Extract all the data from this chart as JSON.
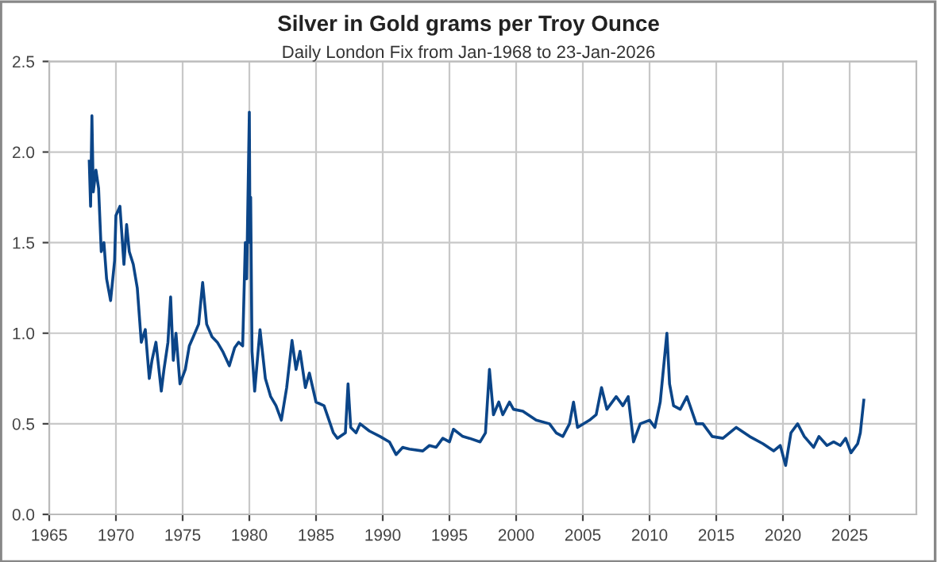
{
  "chart_data": {
    "type": "line",
    "title": "Silver in Gold grams per Troy Ounce",
    "subtitle": "Daily London Fix from Jan-1968 to 23-Jan-2026",
    "series": [
      {
        "color": "#0b4588",
        "x": [
          1968.0,
          1968.1,
          1968.2,
          1968.3,
          1968.5,
          1968.7,
          1968.9,
          1969.1,
          1969.3,
          1969.6,
          1969.9,
          1970.0,
          1970.3,
          1970.6,
          1970.8,
          1971.0,
          1971.3,
          1971.6,
          1971.8,
          1971.9,
          1972.2,
          1972.5,
          1972.7,
          1973.0,
          1973.4,
          1973.6,
          1973.9,
          1974.1,
          1974.3,
          1974.5,
          1974.8,
          1975.2,
          1975.5,
          1975.8,
          1976.2,
          1976.5,
          1976.8,
          1977.2,
          1977.6,
          1978.0,
          1978.5,
          1978.9,
          1979.2,
          1979.5,
          1979.7,
          1979.8,
          1980.0,
          1980.05,
          1980.1,
          1980.2,
          1980.4,
          1980.8,
          1981.2,
          1981.6,
          1982.0,
          1982.4,
          1982.8,
          1983.2,
          1983.5,
          1983.8,
          1984.2,
          1984.5,
          1985.0,
          1985.6,
          1986.3,
          1986.6,
          1987.2,
          1987.4,
          1987.6,
          1988.0,
          1988.3,
          1989.0,
          1989.8,
          1990.5,
          1991.0,
          1991.5,
          1992.0,
          1993.0,
          1993.5,
          1994.0,
          1994.5,
          1995.0,
          1995.3,
          1996.0,
          1996.5,
          1997.3,
          1997.7,
          1998.0,
          1998.3,
          1998.7,
          1999.0,
          1999.5,
          1999.8,
          2000.5,
          2001.5,
          2002.5,
          2003.0,
          2003.5,
          2004.0,
          2004.3,
          2004.6,
          2005.5,
          2006.0,
          2006.4,
          2006.8,
          2007.5,
          2008.0,
          2008.4,
          2008.8,
          2009.3,
          2010.0,
          2010.4,
          2010.8,
          2011.3,
          2011.5,
          2011.8,
          2012.3,
          2012.8,
          2013.5,
          2014.0,
          2014.7,
          2015.5,
          2016.5,
          2017.5,
          2018.5,
          2019.3,
          2019.8,
          2020.2,
          2020.6,
          2021.1,
          2021.6,
          2022.3,
          2022.7,
          2023.3,
          2023.8,
          2024.3,
          2024.7,
          2025.1,
          2025.6,
          2025.8,
          2026.06
        ],
        "values": [
          1.95,
          1.7,
          2.2,
          1.78,
          1.9,
          1.8,
          1.45,
          1.5,
          1.3,
          1.18,
          1.4,
          1.65,
          1.7,
          1.38,
          1.6,
          1.45,
          1.38,
          1.25,
          1.05,
          0.95,
          1.02,
          0.75,
          0.85,
          0.95,
          0.68,
          0.8,
          0.95,
          1.2,
          0.85,
          1.0,
          0.72,
          0.8,
          0.93,
          0.98,
          1.05,
          1.28,
          1.05,
          0.98,
          0.95,
          0.9,
          0.82,
          0.92,
          0.95,
          0.93,
          1.5,
          1.3,
          2.22,
          1.5,
          1.75,
          0.9,
          0.68,
          1.02,
          0.75,
          0.65,
          0.6,
          0.52,
          0.7,
          0.96,
          0.8,
          0.9,
          0.7,
          0.78,
          0.62,
          0.6,
          0.45,
          0.42,
          0.45,
          0.72,
          0.48,
          0.45,
          0.5,
          0.46,
          0.43,
          0.4,
          0.33,
          0.37,
          0.36,
          0.35,
          0.38,
          0.37,
          0.42,
          0.4,
          0.47,
          0.43,
          0.42,
          0.4,
          0.45,
          0.8,
          0.55,
          0.62,
          0.55,
          0.62,
          0.58,
          0.57,
          0.52,
          0.5,
          0.45,
          0.43,
          0.5,
          0.62,
          0.48,
          0.52,
          0.55,
          0.7,
          0.58,
          0.65,
          0.6,
          0.65,
          0.4,
          0.5,
          0.52,
          0.48,
          0.62,
          1.0,
          0.72,
          0.6,
          0.58,
          0.65,
          0.5,
          0.5,
          0.43,
          0.42,
          0.48,
          0.43,
          0.39,
          0.35,
          0.38,
          0.27,
          0.45,
          0.5,
          0.43,
          0.37,
          0.43,
          0.38,
          0.4,
          0.38,
          0.42,
          0.34,
          0.39,
          0.45,
          0.63
        ]
      }
    ],
    "xlim": [
      1965,
      2030
    ],
    "xticks": [
      1965,
      1970,
      1975,
      1980,
      1985,
      1990,
      1995,
      2000,
      2005,
      2010,
      2015,
      2020,
      2025
    ],
    "ylim": [
      0,
      2.5
    ],
    "yticks": [
      {
        "value": 0,
        "label": "0.0"
      },
      {
        "value": 0.5,
        "label": "0.5"
      },
      {
        "value": 1,
        "label": "1.0"
      },
      {
        "value": 1.5,
        "label": "1.5"
      },
      {
        "value": 2,
        "label": "2.0"
      },
      {
        "value": 2.5,
        "label": "2.5"
      }
    ],
    "grid": true
  }
}
